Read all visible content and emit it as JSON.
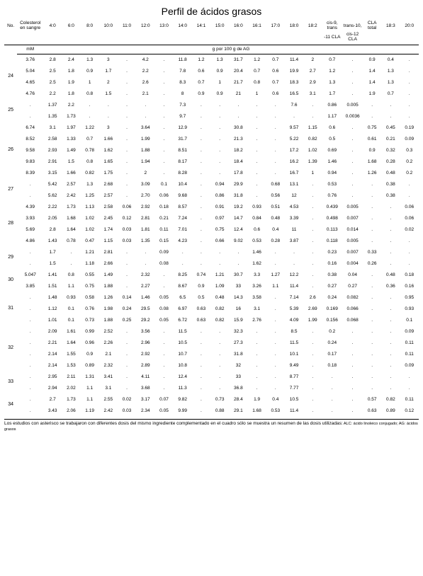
{
  "title": "Perfil de ácidos grasos",
  "columns": [
    "No.",
    "Colesterol en sangre",
    "4:0",
    "6:0",
    "8:0",
    "10:0",
    "11:0",
    "12:0",
    "13:0",
    "14:0",
    "14:1",
    "15:0",
    "16:0",
    "16:1",
    "17:0",
    "18:0",
    "18:2",
    "cis-9, trans",
    "trans-10,",
    "CLA total",
    "18:3",
    "20:0"
  ],
  "subheaders": [
    "",
    "",
    "",
    "",
    "",
    "",
    "",
    "",
    "",
    "",
    "",
    "",
    "",
    "",
    "",
    "",
    "",
    "-11 CLA",
    "cis-12 CLA",
    "",
    "",
    ""
  ],
  "unit_left": "mM",
  "unit_right": "g por 100 g de AG",
  "groups": [
    {
      "no": "24",
      "rows": [
        [
          "3.76",
          "2.8",
          "2.4",
          "1.3",
          "3",
          ".",
          "4.2",
          ".",
          "11.8",
          "1.2",
          "1.3",
          "31.7",
          "1.2",
          "0.7",
          "11.4",
          "2",
          "0.7",
          ".",
          "0.9",
          "0.4",
          "."
        ],
        [
          "5.04",
          "2.5",
          "1.8",
          "0.9",
          "1.7",
          ".",
          "2.2",
          ".",
          "7.8",
          "0.6",
          "0.9",
          "20.4",
          "0.7",
          "0.6",
          "19.9",
          "2.7",
          "1.2",
          ".",
          "1.4",
          "1.3",
          "."
        ],
        [
          "4.65",
          "2.5",
          "1.9",
          "1",
          "2",
          ".",
          "2.6",
          ".",
          "8.3",
          "0.7",
          "1",
          "21.7",
          "0.8",
          "0.7",
          "18.3",
          "2.9",
          "1.3",
          ".",
          "1.4",
          "1.3",
          "."
        ],
        [
          "4.76",
          "2.2",
          "1.8",
          "0.8",
          "1.5",
          ".",
          "2.1",
          ".",
          "8",
          "0.9",
          "0.9",
          "21",
          "1",
          "0.6",
          "16.5",
          "3.1",
          "1.7",
          ".",
          "1.9",
          "0.7",
          "."
        ]
      ]
    },
    {
      "no": "25",
      "rows": [
        [
          ".",
          "1.37",
          "2.2",
          ".",
          ".",
          ".",
          ".",
          ".",
          "7.3",
          ".",
          ".",
          ".",
          ".",
          ".",
          "7.6",
          ".",
          "0.86",
          "0.005",
          ".",
          ".",
          "."
        ],
        [
          ".",
          "1.35",
          "1.73",
          ".",
          ".",
          ".",
          ".",
          ".",
          "9.7",
          ".",
          ".",
          ".",
          ".",
          ".",
          ".",
          ".",
          "1.17",
          "0.0036",
          ".",
          ".",
          "."
        ]
      ]
    },
    {
      "no": "26",
      "rows": [
        [
          "6.74",
          "3.1",
          "1.97",
          "1.22",
          "3",
          ".",
          "3.64",
          ".",
          "12.9",
          ".",
          ".",
          "30.8",
          ".",
          ".",
          "9.57",
          "1.15",
          "0.6",
          ".",
          "0.75",
          "0.45",
          "0.19"
        ],
        [
          "8.52",
          "2.58",
          "1.33",
          "0.7",
          "1.66",
          ".",
          "1.99",
          ".",
          "31.7",
          ".",
          ".",
          "21.3",
          ".",
          ".",
          "5.22",
          "0.82",
          "0.5",
          ".",
          "0.61",
          "0.21",
          "0.09"
        ],
        [
          "9.58",
          "2.93",
          "1.49",
          "0.78",
          "1.62",
          ".",
          "1.88",
          ".",
          "8.51",
          ".",
          ".",
          "18.2",
          ".",
          ".",
          "17.2",
          "1.02",
          "0.69",
          ".",
          "0.9",
          "0.32",
          "0.3"
        ],
        [
          "9.83",
          "2.91",
          "1.5",
          "0.8",
          "1.65",
          ".",
          "1.94",
          ".",
          "8.17",
          ".",
          ".",
          "18.4",
          ".",
          ".",
          "16.2",
          "1.39",
          "1.46",
          ".",
          "1.68",
          "0.28",
          "0.2"
        ],
        [
          "8.39",
          "3.15",
          "1.66",
          "0.82",
          "1.75",
          ".",
          "2",
          ".",
          "8.28",
          ".",
          ".",
          "17.8",
          ".",
          ".",
          "16.7",
          "1",
          "0.94",
          ".",
          "1.26",
          "0.48",
          "0.2"
        ]
      ]
    },
    {
      "no": "27",
      "rows": [
        [
          ".",
          "5.42",
          "2.57",
          "1.3",
          "2.68",
          ".",
          "3.09",
          "0.1",
          "10.4",
          ".",
          "0.94",
          "29.9",
          ".",
          "0.68",
          "13.1",
          ".",
          "0.53",
          ".",
          ".",
          "0.38",
          "."
        ],
        [
          ".",
          "5.62",
          "2.42",
          "1.25",
          "2.57",
          ".",
          "2.70",
          "0.06",
          "9.68",
          ".",
          "0.86",
          "31.8",
          ".",
          "0.56",
          "12",
          ".",
          "0.76",
          ".",
          ".",
          "0.38",
          "."
        ]
      ]
    },
    {
      "no": "28",
      "rows": [
        [
          "4.39",
          "2.22",
          "1.73",
          "1.13",
          "2.58",
          "0.06",
          "2.92",
          "0.18",
          "8.57",
          ".",
          "0.91",
          "19.2",
          "0.93",
          "0.51",
          "4.53",
          ".",
          "0.439",
          "0.005",
          ".",
          ".",
          "0.06"
        ],
        [
          "3.93",
          "2.05",
          "1.68",
          "1.02",
          "2.45",
          "0.12",
          "2.81",
          "0.21",
          "7.24",
          ".",
          "0.97",
          "14.7",
          "0.84",
          "0.48",
          "3.39",
          ".",
          "0.498",
          "0.007",
          ".",
          ".",
          "0.06"
        ],
        [
          "5.69",
          "2.8",
          "1.64",
          "1.02",
          "1.74",
          "0.03",
          "1.81",
          "0.11",
          "7.01",
          ".",
          "0.75",
          "12.4",
          "0.6",
          "0.4",
          "11",
          ".",
          "0.113",
          "0.014",
          ".",
          ".",
          "0.02"
        ],
        [
          "4.86",
          "1.43",
          "0.78",
          "0.47",
          "1.15",
          "0.03",
          "1.35",
          "0.15",
          "4.23",
          ".",
          "0.66",
          "9.02",
          "0.53",
          "0.28",
          "3.87",
          ".",
          "0.118",
          "0.005",
          ".",
          ".",
          "."
        ]
      ]
    },
    {
      "no": "29",
      "rows": [
        [
          ".",
          "1.7",
          ".",
          "1.21",
          "2.81",
          ".",
          ".",
          "0.09",
          ".",
          ".",
          ".",
          ".",
          "1.46",
          ".",
          ".",
          ".",
          "0.23",
          "0.007",
          "0.33",
          ".",
          "."
        ],
        [
          ".",
          "1.5",
          ".",
          "1.18",
          "2.66",
          ".",
          ".",
          "0.08",
          ".",
          ".",
          ".",
          ".",
          "1.62",
          ".",
          ".",
          ".",
          "0.16",
          "0.004",
          "0.26",
          ".",
          "."
        ]
      ]
    },
    {
      "no": "30",
      "rows": [
        [
          "5.047",
          "1.41",
          "0.8",
          "0.55",
          "1.49",
          ".",
          "2.32",
          ".",
          "8.25",
          "0.74",
          "1.21",
          "30.7",
          "3.3",
          "1.27",
          "12.2",
          ".",
          "0.38",
          "0.04",
          ".",
          "0.48",
          "0.18"
        ],
        [
          "3.85",
          "1.51",
          "1.1",
          "0.75",
          "1.88",
          ".",
          "2.27",
          ".",
          "8.67",
          "0.9",
          "1.09",
          "33",
          "3.26",
          "1.1",
          "11.4",
          ".",
          "0.27",
          "0.27",
          ".",
          "0.36",
          "0.16"
        ]
      ]
    },
    {
      "no": "31",
      "rows": [
        [
          ".",
          "1.48",
          "0.93",
          "0.58",
          "1.26",
          "0.14",
          "1.46",
          "0.05",
          "6.5",
          "0.5",
          "0.48",
          "14.3",
          "3.58",
          ".",
          "7.14",
          "2.6",
          "0.24",
          "0.082",
          ".",
          ".",
          "0.95"
        ],
        [
          ".",
          "1.12",
          "0.1",
          "0.76",
          "1.98",
          "0.24",
          "29.5",
          "0.08",
          "6.97",
          "0.63",
          "0.82",
          "16",
          "3.1",
          ".",
          "5.39",
          "2.69",
          "0.169",
          "0.066",
          ".",
          ".",
          "0.93"
        ],
        [
          ".",
          "1.01",
          "0.1",
          "0.73",
          "1.88",
          "0.25",
          "29.2",
          "0.05",
          "6.72",
          "0.63",
          "0.82",
          "15.9",
          "2.76",
          ".",
          "4.09",
          "1.99",
          "0.156",
          "0.068",
          ".",
          ".",
          "0.1"
        ]
      ]
    },
    {
      "no": "32",
      "rows": [
        [
          ".",
          "2.09",
          "1.61",
          "0.99",
          "2.52",
          ".",
          "3.56",
          ".",
          "11.5",
          ".",
          ".",
          "32.3",
          ".",
          ".",
          "8.5",
          ".",
          "0.2",
          ".",
          ".",
          ".",
          "0.09"
        ],
        [
          ".",
          "2.21",
          "1.64",
          "0.96",
          "2.26",
          ".",
          "2.96",
          ".",
          "10.5",
          ".",
          ".",
          "27.3",
          ".",
          ".",
          "11.5",
          ".",
          "0.24",
          ".",
          ".",
          ".",
          "0.11"
        ],
        [
          ".",
          "2.14",
          "1.55",
          "0.9",
          "2.1",
          ".",
          "2.92",
          ".",
          "10.7",
          ".",
          ".",
          "31.8",
          ".",
          ".",
          "10.1",
          ".",
          "0.17",
          ".",
          ".",
          ".",
          "0.11"
        ],
        [
          ".",
          "2.14",
          "1.53",
          "0.89",
          "2.32",
          ".",
          "2.89",
          ".",
          "10.8",
          ".",
          ".",
          "32",
          ".",
          ".",
          "9.49",
          ".",
          "0.18",
          ".",
          ".",
          ".",
          "0.09"
        ]
      ]
    },
    {
      "no": "33",
      "rows": [
        [
          ".",
          "2.95",
          "2.11",
          "1.31",
          "3.41",
          ".",
          "4.11",
          ".",
          "12.4",
          ".",
          ".",
          "33",
          ".",
          ".",
          "8.77",
          ".",
          ".",
          ".",
          ".",
          ".",
          "."
        ],
        [
          ".",
          "2.94",
          "2.02",
          "1.1",
          "3.1",
          ".",
          "3.68",
          ".",
          "11.3",
          ".",
          ".",
          "36.8",
          ".",
          ".",
          "7.77",
          ".",
          ".",
          ".",
          ".",
          ".",
          "."
        ]
      ]
    },
    {
      "no": "34",
      "rows": [
        [
          ".",
          "2.7",
          "1.73",
          "1.1",
          "2.55",
          "0.02",
          "3.17",
          "0.07",
          "9.82",
          ".",
          "0.73",
          "28.4",
          "1.9",
          "0.4",
          "10.5",
          ".",
          ".",
          ".",
          "0.57",
          "0.82",
          "0.11"
        ],
        [
          ".",
          "3.43",
          "2.06",
          "1.19",
          "2.42",
          "0.03",
          "2.34",
          "0.05",
          "9.99",
          ".",
          "0.88",
          "29.1",
          "1.68",
          "0.53",
          "11.4",
          ".",
          ".",
          ".",
          "0.63",
          "0.89",
          "0.12"
        ]
      ]
    }
  ],
  "footnote_main": "Los estudios con asterisco se trabajaron con diferentes dosis del mismo ingrediente complementado en el cuadro sólo se muestra un resumen de las dosis utilizadas:",
  "footnote_small": " ALC: ácido linoleico conjugado; AG: ácidos grasos"
}
